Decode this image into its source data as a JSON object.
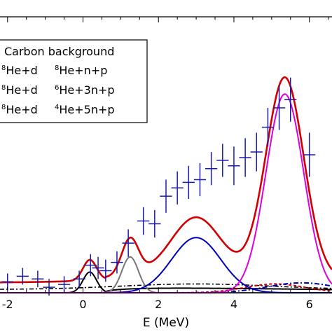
{
  "chart_data": {
    "type": "line",
    "xlabel": "E (MeV)",
    "ylabel": "",
    "xlim": [
      -2.2,
      6.6
    ],
    "ylim": [
      0,
      100
    ],
    "x_ticks": [
      -2,
      0,
      2,
      4,
      6
    ],
    "tick_labels": [
      "-2",
      "0",
      "2",
      "4",
      "6"
    ],
    "legend_placement": "top-left",
    "legend": [
      {
        "id": "carbon",
        "label": "Carbon background",
        "color": "#000000",
        "dash": "6,3,2,3"
      },
      {
        "id": "np",
        "label": "He+d",
        "iso1": "8",
        "label2": "He+n+p",
        "iso2": "8"
      },
      {
        "id": "3np",
        "label": "He+d",
        "iso1": "8",
        "label2": "He+3n+p",
        "iso2": "6"
      },
      {
        "id": "5np",
        "label": "He+d",
        "iso1": "8",
        "label2": "He+5n+p",
        "iso2": "4"
      }
    ],
    "data_points": {
      "x": [
        -2.0,
        -1.6,
        -1.2,
        -0.9,
        -0.5,
        -0.1,
        0.2,
        0.4,
        0.6,
        0.9,
        1.2,
        1.6,
        1.9,
        2.2,
        2.5,
        2.8,
        3.1,
        3.4,
        3.7,
        4.0,
        4.3,
        4.6,
        4.9,
        5.2,
        5.5,
        6.0
      ],
      "y": [
        4,
        6,
        5,
        2,
        3,
        5,
        10,
        9,
        8,
        11,
        18,
        26,
        25,
        35,
        38,
        40,
        41,
        45,
        48,
        46,
        49,
        51,
        60,
        67,
        70,
        50
      ],
      "yerr": [
        3,
        3,
        3,
        3,
        3,
        3,
        4,
        4,
        4,
        4,
        5,
        5,
        5,
        6,
        6,
        6,
        6,
        6,
        6,
        7,
        7,
        7,
        7,
        8,
        8,
        8
      ]
    },
    "series": [
      {
        "id": "fit",
        "color": "#d00000"
      },
      {
        "id": "black-peak",
        "color": "#000000"
      },
      {
        "id": "gray-peak",
        "color": "#777777"
      },
      {
        "id": "blue-peak",
        "color": "#0000bb"
      },
      {
        "id": "magenta-peak",
        "color": "#dd00dd"
      }
    ]
  }
}
